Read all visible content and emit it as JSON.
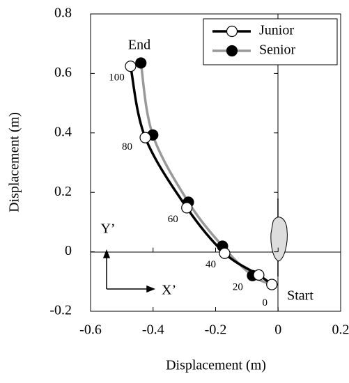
{
  "chart_data": {
    "type": "line",
    "xlabel": "Displacement (m)",
    "ylabel": "Displacement (m)",
    "xlim": [
      -0.6,
      0.2
    ],
    "ylim": [
      -0.2,
      0.8
    ],
    "xticks": [
      -0.6,
      -0.4,
      -0.2,
      0,
      0.2
    ],
    "yticks": [
      -0.2,
      0,
      0.2,
      0.4,
      0.6,
      0.8
    ],
    "legend": "upper right",
    "series": [
      {
        "name": "Junior",
        "color": "#000000",
        "marker": "open",
        "x": [
          -0.02,
          -0.062,
          -0.171,
          -0.292,
          -0.425,
          -0.472
        ],
        "y": [
          -0.11,
          -0.078,
          -0.005,
          0.148,
          0.384,
          0.624
        ]
      },
      {
        "name": "Senior",
        "color": "#999999",
        "marker": "filled",
        "x": [
          -0.02,
          -0.082,
          -0.178,
          -0.287,
          -0.401,
          -0.439
        ],
        "y": [
          -0.11,
          -0.08,
          0.019,
          0.167,
          0.393,
          0.635
        ]
      }
    ],
    "point_labels": [
      "0",
      "20",
      "40",
      "60",
      "80",
      "100"
    ],
    "annotations": {
      "end": "End",
      "start": "Start",
      "local_y": "Y’",
      "local_x": "X’"
    }
  }
}
